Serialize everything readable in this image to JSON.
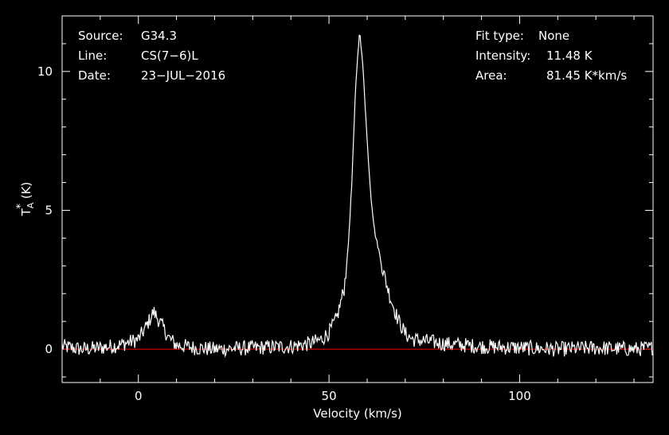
{
  "header_left": [
    {
      "label": "Source:",
      "value": "G34.3"
    },
    {
      "label": "Line:",
      "value": "CS(7−6)L"
    },
    {
      "label": "Date:",
      "value": "23−JUL−2016"
    }
  ],
  "header_right": [
    {
      "label": "Fit type:",
      "value": "None"
    },
    {
      "label": "Intensity:",
      "value": "11.48 K"
    },
    {
      "label": "Area:",
      "value": "81.45 K*km/s"
    }
  ],
  "colors": {
    "background": "#000000",
    "axes": "#ffffff",
    "spectrum": "#ffffff",
    "baseline": "#ff0000"
  },
  "chart_data": {
    "type": "line",
    "xlabel": "Velocity (km/s)",
    "ylabel_main": "T",
    "ylabel_sup": "*",
    "ylabel_sub": "A",
    "ylabel_unit": "(K)",
    "xlim": [
      -20,
      135
    ],
    "ylim": [
      -1.2,
      12
    ],
    "xticks": [
      0,
      50,
      100
    ],
    "yticks": [
      0,
      5,
      10
    ],
    "baseline_y": 0,
    "x": [
      -20,
      -15,
      -10,
      -5,
      0,
      2,
      4,
      6,
      8,
      10,
      15,
      20,
      30,
      40,
      45,
      48,
      50,
      52,
      54,
      55,
      56,
      57,
      58,
      59,
      60,
      61,
      62,
      63,
      64,
      65,
      66,
      68,
      70,
      72,
      75,
      80,
      85,
      90,
      100,
      110,
      120,
      130,
      135
    ],
    "y": [
      0.1,
      0.0,
      0.05,
      0.15,
      0.35,
      0.8,
      1.35,
      0.9,
      0.4,
      0.15,
      0.05,
      0.0,
      0.05,
      0.1,
      0.2,
      0.35,
      0.6,
      1.1,
      2.2,
      3.6,
      6.0,
      9.5,
      11.48,
      10.0,
      7.5,
      5.5,
      4.2,
      3.6,
      2.9,
      2.4,
      1.9,
      1.1,
      0.55,
      0.35,
      0.3,
      0.2,
      0.15,
      0.1,
      0.05,
      0.0,
      0.05,
      0.0,
      0.05
    ]
  }
}
